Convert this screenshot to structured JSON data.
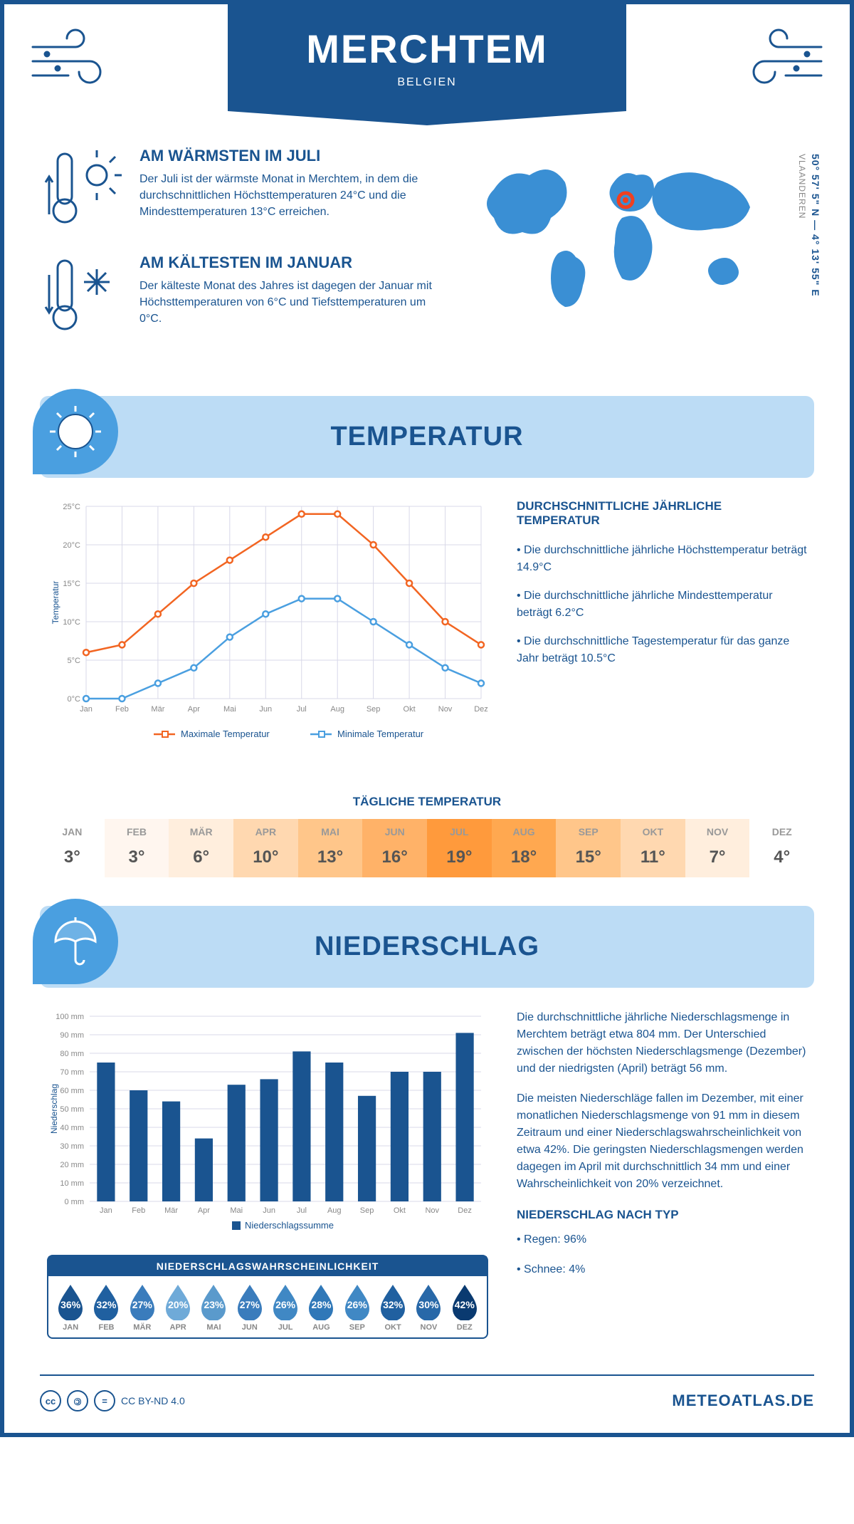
{
  "header": {
    "title": "MERCHTEM",
    "country": "BELGIEN"
  },
  "coords": "50° 57' 5\" N — 4° 13' 55\" E",
  "region": "VLAANDEREN",
  "colors": {
    "primary": "#1a5490",
    "lightblue": "#bcdcf5",
    "badge": "#4a9fe0",
    "max_line": "#f26522",
    "min_line": "#4a9fe0",
    "bar": "#1a5490"
  },
  "intro": {
    "warm": {
      "title": "AM WÄRMSTEN IM JULI",
      "text": "Der Juli ist der wärmste Monat in Merchtem, in dem die durchschnittlichen Höchsttemperaturen 24°C und die Mindesttemperaturen 13°C erreichen."
    },
    "cold": {
      "title": "AM KÄLTESTEN IM JANUAR",
      "text": "Der kälteste Monat des Jahres ist dagegen der Januar mit Höchsttemperaturen von 6°C und Tiefsttemperaturen um 0°C."
    }
  },
  "temp_section": {
    "title": "TEMPERATUR"
  },
  "temp_chart": {
    "type": "line",
    "months": [
      "Jan",
      "Feb",
      "Mär",
      "Apr",
      "Mai",
      "Jun",
      "Jul",
      "Aug",
      "Sep",
      "Okt",
      "Nov",
      "Dez"
    ],
    "max_values": [
      6,
      7,
      11,
      15,
      18,
      21,
      24,
      24,
      20,
      15,
      10,
      7
    ],
    "min_values": [
      0,
      0,
      2,
      4,
      8,
      11,
      13,
      13,
      10,
      7,
      4,
      2
    ],
    "ylabel": "Temperatur",
    "ylim": [
      0,
      25
    ],
    "ytick_step": 5,
    "legend_max": "Maximale Temperatur",
    "legend_min": "Minimale Temperatur",
    "grid_color": "#d8d8e8",
    "max_color": "#f26522",
    "min_color": "#4a9fe0"
  },
  "temp_info": {
    "heading": "DURCHSCHNITTLICHE JÄHRLICHE TEMPERATUR",
    "b1": "• Die durchschnittliche jährliche Höchsttemperatur beträgt 14.9°C",
    "b2": "• Die durchschnittliche jährliche Mindesttemperatur beträgt 6.2°C",
    "b3": "• Die durchschnittliche Tagestemperatur für das ganze Jahr beträgt 10.5°C"
  },
  "daily": {
    "title": "TÄGLICHE TEMPERATUR",
    "months": [
      "JAN",
      "FEB",
      "MÄR",
      "APR",
      "MAI",
      "JUN",
      "JUL",
      "AUG",
      "SEP",
      "OKT",
      "NOV",
      "DEZ"
    ],
    "values": [
      "3°",
      "3°",
      "6°",
      "10°",
      "13°",
      "16°",
      "19°",
      "18°",
      "15°",
      "11°",
      "7°",
      "4°"
    ],
    "bg_colors": [
      "#ffffff",
      "#fff6ef",
      "#ffeedd",
      "#ffd8b0",
      "#ffc68a",
      "#ffb268",
      "#ff9a3c",
      "#ffa850",
      "#ffc68a",
      "#ffd8b0",
      "#ffeedd",
      "#ffffff"
    ]
  },
  "precip_section": {
    "title": "NIEDERSCHLAG"
  },
  "precip_chart": {
    "type": "bar",
    "months": [
      "Jan",
      "Feb",
      "Mär",
      "Apr",
      "Mai",
      "Jun",
      "Jul",
      "Aug",
      "Sep",
      "Okt",
      "Nov",
      "Dez"
    ],
    "values": [
      75,
      60,
      54,
      34,
      63,
      66,
      81,
      75,
      57,
      70,
      70,
      91
    ],
    "ylabel": "Niederschlag",
    "ylim": [
      0,
      100
    ],
    "ytick_step": 10,
    "legend": "Niederschlagssumme",
    "bar_color": "#1a5490",
    "grid_color": "#d8d8e8"
  },
  "precip_text": {
    "p1": "Die durchschnittliche jährliche Niederschlagsmenge in Merchtem beträgt etwa 804 mm. Der Unterschied zwischen der höchsten Niederschlagsmenge (Dezember) und der niedrigsten (April) beträgt 56 mm.",
    "p2": "Die meisten Niederschläge fallen im Dezember, mit einer monatlichen Niederschlagsmenge von 91 mm in diesem Zeitraum und einer Niederschlagswahrscheinlichkeit von etwa 42%. Die geringsten Niederschlagsmengen werden dagegen im April mit durchschnittlich 34 mm und einer Wahrscheinlichkeit von 20% verzeichnet.",
    "type_heading": "NIEDERSCHLAG NACH TYP",
    "t1": "• Regen: 96%",
    "t2": "• Schnee: 4%"
  },
  "prob": {
    "title": "NIEDERSCHLAGSWAHRSCHEINLICHKEIT",
    "months": [
      "JAN",
      "FEB",
      "MÄR",
      "APR",
      "MAI",
      "JUN",
      "JUL",
      "AUG",
      "SEP",
      "OKT",
      "NOV",
      "DEZ"
    ],
    "values": [
      "36%",
      "32%",
      "27%",
      "20%",
      "23%",
      "27%",
      "26%",
      "28%",
      "26%",
      "32%",
      "30%",
      "42%"
    ],
    "drop_colors": [
      "#1a5490",
      "#2060a0",
      "#3a7cbc",
      "#6faad8",
      "#5a9acc",
      "#3a7cbc",
      "#4088c4",
      "#3078b8",
      "#4088c4",
      "#2060a0",
      "#2868a8",
      "#0a3a70"
    ]
  },
  "footer": {
    "license": "CC BY-ND 4.0",
    "brand": "METEOATLAS.DE"
  }
}
